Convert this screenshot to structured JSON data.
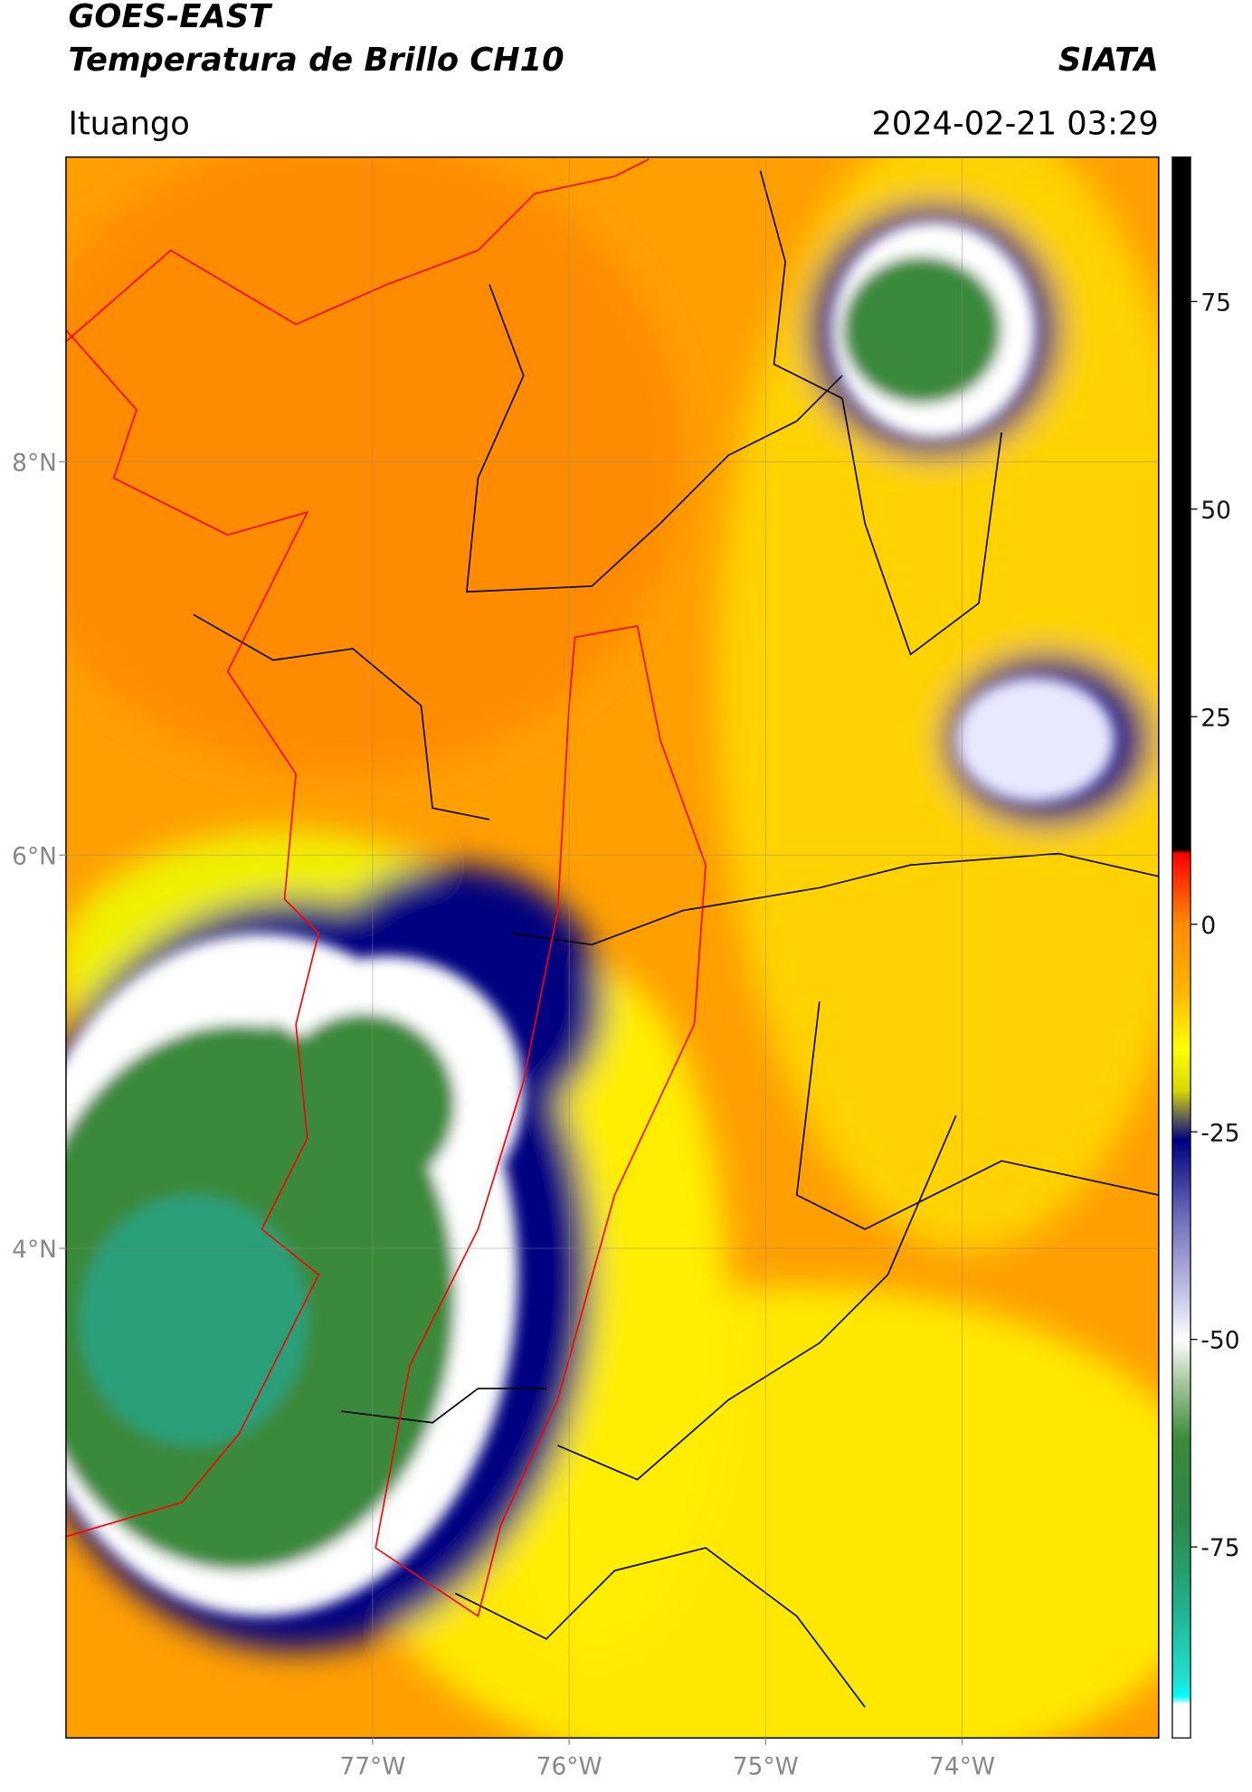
{
  "header": {
    "title": "GOES-EAST",
    "subtitle": "Temperatura de Brillo CH10",
    "brand": "SIATA",
    "location": "Ituango",
    "datetime": "2024-02-21 03:29"
  },
  "map": {
    "type": "map",
    "xlim": [
      -78.56,
      -73.0
    ],
    "ylim": [
      1.51,
      9.55
    ],
    "grid": true,
    "xticks": [
      {
        "value": -77,
        "label": "77°W"
      },
      {
        "value": -76,
        "label": "76°W"
      },
      {
        "value": -75,
        "label": "75°W"
      },
      {
        "value": -74,
        "label": "74°W"
      }
    ],
    "yticks": [
      {
        "value": 8,
        "label": "8°N"
      },
      {
        "value": 6,
        "label": "6°N"
      },
      {
        "value": 4,
        "label": "4°N"
      }
    ]
  },
  "colorbar": {
    "lim": [
      -98,
      92.4
    ],
    "ticks": [
      75,
      50,
      25,
      0,
      -25,
      -50,
      -75
    ],
    "stops": [
      [
        92.4,
        "#000000"
      ],
      [
        9,
        "#000000"
      ],
      [
        8.5,
        "#ff0000"
      ],
      [
        3,
        "#ff5a00"
      ],
      [
        0,
        "#ff8c00"
      ],
      [
        -8,
        "#ffb400"
      ],
      [
        -15,
        "#ffff00"
      ],
      [
        -20,
        "#d8d800"
      ],
      [
        -23,
        "#6a6a50"
      ],
      [
        -26,
        "#000080"
      ],
      [
        -35,
        "#6a6ab8"
      ],
      [
        -45,
        "#c8c8e8"
      ],
      [
        -50,
        "#ffffff"
      ],
      [
        -55,
        "#a8c8a0"
      ],
      [
        -62,
        "#3a8a3a"
      ],
      [
        -72,
        "#2a8a4a"
      ],
      [
        -82,
        "#20b08a"
      ],
      [
        -91,
        "#20e0d0"
      ],
      [
        -93,
        "#00ffff"
      ],
      [
        -94,
        "#ffffff"
      ],
      [
        -98,
        "#ffffff"
      ]
    ]
  }
}
